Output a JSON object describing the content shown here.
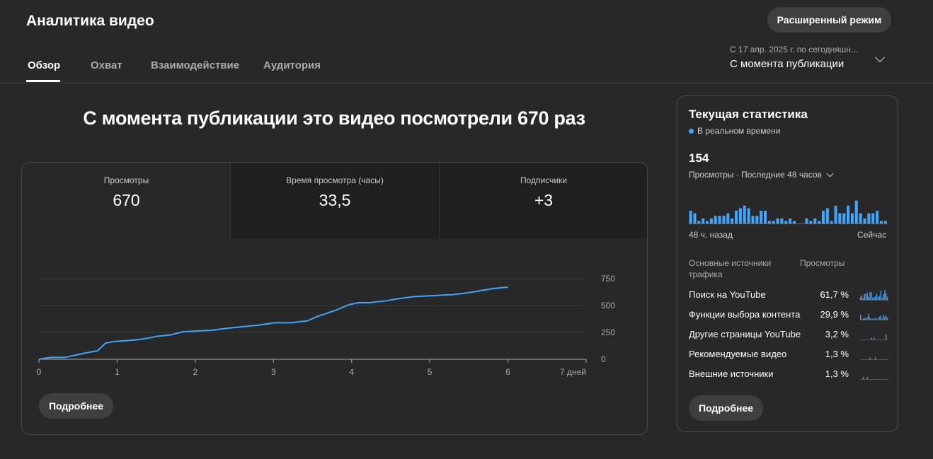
{
  "header": {
    "title": "Аналитика видео",
    "advanced_button": "Расширенный режим",
    "tabs": [
      {
        "label": "Обзор",
        "selected": true
      },
      {
        "label": "Охват"
      },
      {
        "label": "Взаимодействие"
      },
      {
        "label": "Аудитория"
      }
    ],
    "range": {
      "subtitle": "С 17 апр. 2025 г. по сегодняшн...",
      "value": "С момента публикации"
    }
  },
  "main": {
    "headline": "С момента публикации это видео посмотрели 670 раз",
    "metrics": [
      {
        "label": "Просмотры",
        "value": "670"
      },
      {
        "label": "Время просмотра (часы)",
        "value": "33,5"
      },
      {
        "label": "Подписчики",
        "value": "+3"
      }
    ],
    "more_button": "Подробнее"
  },
  "chart_data": {
    "type": "line",
    "xlabel": "",
    "ylabel": "",
    "x_ticks": [
      "0",
      "1",
      "2",
      "3",
      "4",
      "5",
      "6",
      "7 дней"
    ],
    "y_ticks": [
      "0",
      "250",
      "500",
      "750"
    ],
    "xlim": [
      0,
      7
    ],
    "ylim": [
      0,
      750
    ],
    "grid": true,
    "color": "#3ea6ff",
    "points": [
      [
        0,
        0
      ],
      [
        0.15,
        17
      ],
      [
        0.33,
        17
      ],
      [
        0.61,
        61
      ],
      [
        0.75,
        79
      ],
      [
        0.85,
        149
      ],
      [
        0.94,
        164
      ],
      [
        1.24,
        180
      ],
      [
        1.4,
        197
      ],
      [
        1.52,
        215
      ],
      [
        1.68,
        226
      ],
      [
        1.85,
        257
      ],
      [
        2.21,
        270
      ],
      [
        2.41,
        289
      ],
      [
        2.82,
        318
      ],
      [
        3.02,
        340
      ],
      [
        3.22,
        340
      ],
      [
        3.43,
        357
      ],
      [
        3.55,
        395
      ],
      [
        3.79,
        454
      ],
      [
        3.97,
        509
      ],
      [
        4.09,
        526
      ],
      [
        4.23,
        526
      ],
      [
        4.44,
        544
      ],
      [
        4.6,
        564
      ],
      [
        4.8,
        583
      ],
      [
        5.04,
        592
      ],
      [
        5.29,
        601
      ],
      [
        5.45,
        614
      ],
      [
        5.65,
        638
      ],
      [
        5.81,
        658
      ],
      [
        6.0,
        671
      ]
    ]
  },
  "realtime": {
    "title": "Текущая статистика",
    "live": "В реальном времени",
    "count": "154",
    "metric_select": "Просмотры · Последние 48 часов",
    "bars": [
      5,
      4,
      1,
      2,
      1,
      2,
      3,
      3,
      3,
      4,
      2,
      5,
      6,
      7,
      6,
      3,
      3,
      5,
      5,
      1,
      1,
      2,
      2,
      1,
      2,
      1,
      0,
      0,
      2,
      1,
      2,
      1,
      5,
      6,
      1,
      7,
      4,
      4,
      7,
      4,
      9,
      4,
      2,
      4,
      4,
      5,
      1,
      1
    ],
    "bars_start": "48 ч. назад",
    "bars_end": "Сейчас",
    "traffic_header": "Основные источники трафика",
    "views_header": "Просмотры",
    "sources": [
      {
        "name": "Поиск на YouTube",
        "percent": "61,7 %",
        "spark": [
          3,
          5,
          2,
          6,
          6,
          7,
          3,
          8,
          8,
          2,
          3,
          3,
          6,
          3,
          4,
          9,
          2,
          6,
          10,
          7,
          3
        ]
      },
      {
        "name": "Функции выбора контента",
        "percent": "29,9 %",
        "spark": [
          5,
          1,
          1,
          2,
          1,
          3,
          6,
          2,
          1,
          1,
          1,
          2,
          1,
          1,
          3,
          4,
          1,
          5,
          3,
          4,
          2
        ]
      },
      {
        "name": "Другие страницы YouTube",
        "percent": "3,2 %",
        "spark": [
          0,
          0,
          0,
          0,
          0,
          0,
          0,
          0,
          2,
          0,
          2,
          0,
          0,
          0,
          0,
          0,
          0,
          0,
          0,
          5,
          0
        ]
      },
      {
        "name": "Рекомендуемые видео",
        "percent": "1,3 %",
        "spark": [
          0,
          0,
          0,
          0,
          0,
          0,
          0,
          2,
          0,
          0,
          0,
          2,
          0,
          0,
          0,
          0,
          0,
          0,
          0,
          0,
          0
        ]
      },
      {
        "name": "Внешние источники",
        "percent": "1,3 %",
        "spark": [
          0,
          0,
          2,
          0,
          0,
          2,
          0,
          0,
          0,
          0,
          0,
          0,
          0,
          0,
          0,
          0,
          0,
          0,
          0,
          0,
          0
        ]
      }
    ],
    "more_button": "Подробнее"
  },
  "colors": {
    "accent": "#3ea6ff",
    "background": "#282828"
  }
}
